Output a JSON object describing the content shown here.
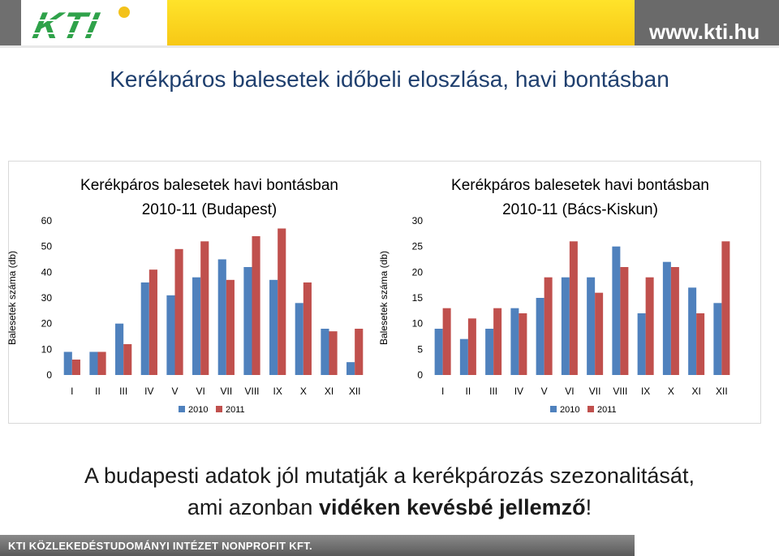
{
  "header": {
    "logo_text": "KTI",
    "url": "www.kti.hu"
  },
  "slide_title": "Kerékpáros balesetek időbeli eloszlása, havi bontásban",
  "chart_data": [
    {
      "type": "bar",
      "title_line1": "Kerékpáros balesetek havi bontásban",
      "title_line2": "2010-11 (Budapest)",
      "ylabel": "Balesetek száma (db)",
      "ylim": [
        0,
        60
      ],
      "yticks": [
        0,
        10,
        20,
        30,
        40,
        50,
        60
      ],
      "categories": [
        "I",
        "II",
        "III",
        "IV",
        "V",
        "VI",
        "VII",
        "VIII",
        "IX",
        "X",
        "XI",
        "XII"
      ],
      "series": [
        {
          "name": "2010",
          "color": "#4f81bd",
          "values": [
            9,
            9,
            20,
            36,
            31,
            38,
            45,
            42,
            37,
            28,
            18,
            5
          ]
        },
        {
          "name": "2011",
          "color": "#c0504d",
          "values": [
            6,
            9,
            12,
            41,
            49,
            52,
            37,
            54,
            57,
            36,
            17,
            18
          ]
        }
      ],
      "legend": "bottom"
    },
    {
      "type": "bar",
      "title_line1": "Kerékpáros balesetek havi bontásban",
      "title_line2": "2010-11 (Bács-Kiskun)",
      "ylabel": "Balesetek száma (db)",
      "ylim": [
        0,
        30
      ],
      "yticks": [
        0,
        5,
        10,
        15,
        20,
        25,
        30
      ],
      "categories": [
        "I",
        "II",
        "III",
        "IV",
        "V",
        "VI",
        "VII",
        "VIII",
        "IX",
        "X",
        "XI",
        "XII"
      ],
      "series": [
        {
          "name": "2010",
          "color": "#4f81bd",
          "values": [
            9,
            7,
            9,
            13,
            15,
            19,
            19,
            25,
            12,
            22,
            17,
            14
          ]
        },
        {
          "name": "2011",
          "color": "#c0504d",
          "values": [
            13,
            11,
            13,
            12,
            19,
            26,
            16,
            21,
            19,
            21,
            12,
            26
          ]
        }
      ],
      "legend": "bottom"
    }
  ],
  "conclusion": {
    "line1": "A budapesti adatok jól mutatják a kerékpározás szezonalitását,",
    "line2_prefix": "ami azonban ",
    "line2_bold": "vidéken kevésbé jellemző",
    "line2_suffix": "!"
  },
  "footer": {
    "text": "KTI KÖZLEKEDÉSTUDOMÁNYI INTÉZET NONPROFIT KFT."
  }
}
